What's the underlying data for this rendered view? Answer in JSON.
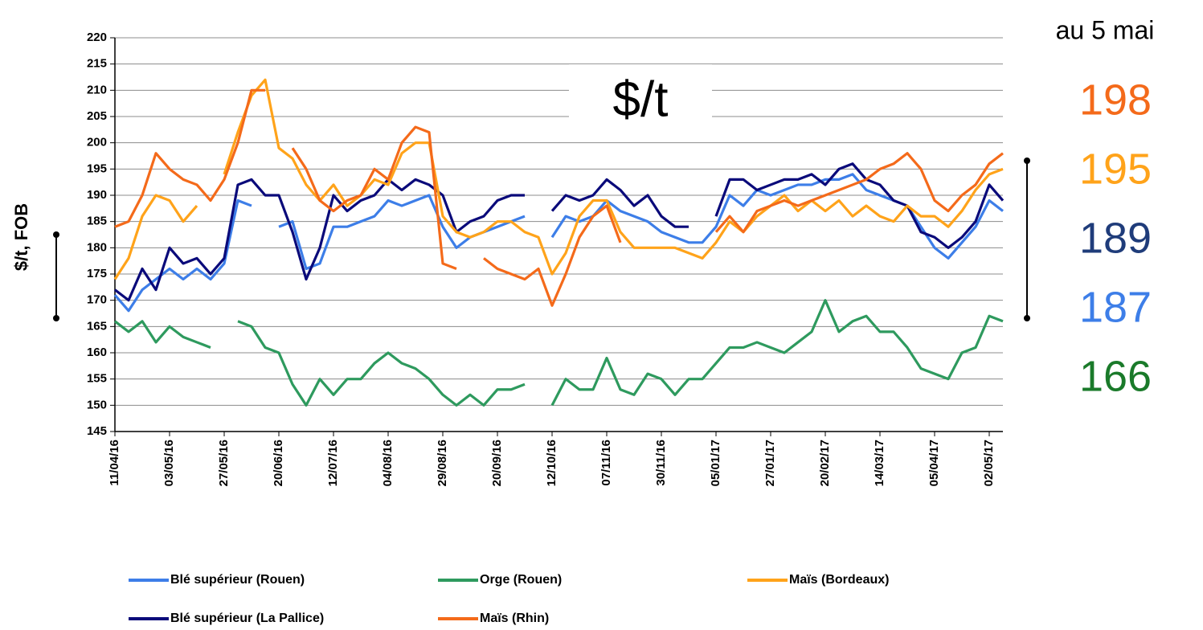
{
  "chart_data": {
    "type": "line",
    "annotation": "$/t",
    "y_label": "$/t, FOB",
    "ylim": [
      145,
      220
    ],
    "yticks": [
      145,
      150,
      155,
      160,
      165,
      170,
      175,
      180,
      185,
      190,
      195,
      200,
      205,
      210,
      215,
      220
    ],
    "grid": true,
    "categories": [
      "11/04/16",
      null,
      null,
      null,
      "03/05/16",
      null,
      null,
      null,
      "27/05/16",
      null,
      null,
      null,
      "20/06/16",
      null,
      null,
      null,
      "12/07/16",
      null,
      null,
      null,
      "04/08/16",
      null,
      null,
      null,
      "29/08/16",
      null,
      null,
      null,
      "20/09/16",
      null,
      null,
      null,
      "12/10/16",
      null,
      null,
      null,
      "07/11/16",
      null,
      null,
      null,
      "30/11/16",
      null,
      null,
      null,
      "05/01/17",
      null,
      null,
      null,
      "27/01/17",
      null,
      null,
      null,
      "20/02/17",
      null,
      null,
      null,
      "14/03/17",
      null,
      null,
      null,
      "05/04/17",
      null,
      null,
      null,
      "02/05/17",
      null
    ],
    "series": [
      {
        "name": "Blé supérieur (Rouen)",
        "color": "#3d7ee8",
        "values": [
          171,
          168,
          172,
          174,
          176,
          174,
          176,
          174,
          177,
          189,
          188,
          null,
          184,
          185,
          176,
          177,
          184,
          184,
          185,
          186,
          189,
          188,
          189,
          190,
          184,
          180,
          182,
          183,
          184,
          185,
          186,
          null,
          182,
          186,
          185,
          186,
          189,
          187,
          186,
          185,
          183,
          182,
          181,
          181,
          184,
          190,
          188,
          191,
          190,
          191,
          192,
          192,
          193,
          193,
          194,
          191,
          190,
          189,
          188,
          184,
          180,
          178,
          181,
          184,
          189,
          187
        ]
      },
      {
        "name": "Orge (Rouen)",
        "color": "#2e9a5e",
        "values": [
          166,
          164,
          166,
          162,
          165,
          163,
          162,
          161,
          null,
          166,
          165,
          161,
          160,
          154,
          150,
          155,
          152,
          155,
          155,
          158,
          160,
          158,
          157,
          155,
          152,
          150,
          152,
          150,
          153,
          153,
          154,
          null,
          150,
          155,
          153,
          153,
          159,
          153,
          152,
          156,
          155,
          152,
          155,
          155,
          158,
          161,
          161,
          162,
          161,
          160,
          162,
          164,
          170,
          164,
          166,
          167,
          164,
          164,
          161,
          157,
          156,
          155,
          160,
          161,
          167,
          166
        ]
      },
      {
        "name": "Maïs (Bordeaux)",
        "color": "#ffa31a",
        "values": [
          174,
          178,
          186,
          190,
          189,
          185,
          188,
          null,
          194,
          202,
          209,
          212,
          199,
          197,
          192,
          189,
          192,
          188,
          190,
          193,
          192,
          198,
          200,
          200,
          186,
          183,
          182,
          183,
          185,
          185,
          183,
          182,
          175,
          179,
          186,
          189,
          189,
          183,
          180,
          180,
          180,
          180,
          179,
          178,
          181,
          185,
          183,
          186,
          188,
          190,
          187,
          189,
          187,
          189,
          186,
          188,
          186,
          185,
          188,
          186,
          186,
          184,
          187,
          191,
          194,
          195
        ]
      },
      {
        "name": "Blé supérieur (La Pallice)",
        "color": "#0a0a7a",
        "values": [
          172,
          170,
          176,
          172,
          180,
          177,
          178,
          175,
          178,
          192,
          193,
          190,
          190,
          183,
          174,
          180,
          190,
          187,
          189,
          190,
          193,
          191,
          193,
          192,
          190,
          183,
          185,
          186,
          189,
          190,
          190,
          null,
          187,
          190,
          189,
          190,
          193,
          191,
          188,
          190,
          186,
          184,
          184,
          null,
          186,
          193,
          193,
          191,
          192,
          193,
          193,
          194,
          192,
          195,
          196,
          193,
          192,
          189,
          188,
          183,
          182,
          180,
          182,
          185,
          192,
          189
        ]
      },
      {
        "name": "Maïs (Rhin)",
        "color": "#f46a1a",
        "values": [
          184,
          185,
          190,
          198,
          195,
          193,
          192,
          189,
          193,
          200,
          210,
          210,
          null,
          199,
          195,
          189,
          187,
          189,
          190,
          195,
          193,
          200,
          203,
          202,
          177,
          176,
          null,
          178,
          176,
          175,
          174,
          176,
          169,
          175,
          182,
          186,
          188,
          181,
          null,
          null,
          null,
          null,
          183,
          null,
          183,
          186,
          183,
          187,
          188,
          189,
          188,
          189,
          190,
          191,
          192,
          193,
          195,
          196,
          198,
          195,
          189,
          187,
          190,
          192,
          196,
          198
        ]
      }
    ],
    "latest": {
      "title": "au 5 mai",
      "values": [
        198,
        195,
        189,
        187,
        166
      ],
      "colors": [
        "#f46a1a",
        "#ffa31a",
        "#1f3c7a",
        "#3d7ee8",
        "#1a7a2a"
      ]
    }
  }
}
